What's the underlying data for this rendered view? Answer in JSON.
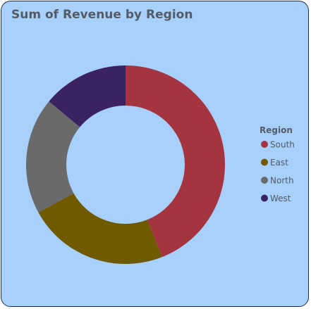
{
  "chart_data": {
    "type": "pie",
    "subtype": "donut",
    "title": "Sum of Revenue by Region",
    "legend_title": "Region",
    "legend_position": "right",
    "categories": [
      "South",
      "East",
      "North",
      "West"
    ],
    "values": [
      44,
      23,
      19,
      14
    ],
    "colors": [
      "#a4343f",
      "#6f5a00",
      "#6a6a6a",
      "#3b2262"
    ]
  }
}
